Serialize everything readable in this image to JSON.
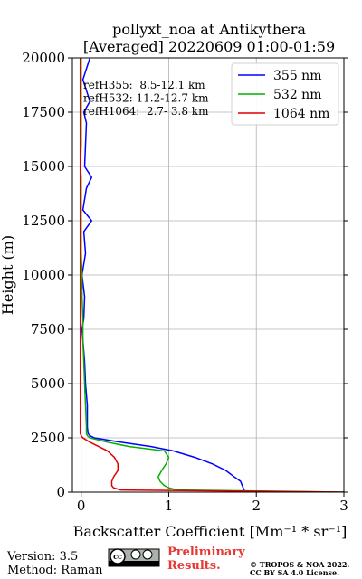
{
  "chart_data": {
    "type": "line",
    "title": [
      "pollyxt_noa at Antikythera",
      "[Averaged] 20220609 01:00-01:59"
    ],
    "xlabel": "Backscatter Coefficient [Mm⁻¹ * sr⁻¹]",
    "ylabel": "Height (m)",
    "xlim": [
      -0.1,
      3
    ],
    "xticks": [
      0,
      1,
      2,
      3
    ],
    "ylim": [
      0,
      20000
    ],
    "yticks": [
      0,
      2500,
      5000,
      7500,
      10000,
      12500,
      15000,
      17500,
      20000
    ],
    "grid": true,
    "legend": "upper right",
    "annotations": [
      "refH355:  8.5-12.1 km",
      "refH532: 11.2-12.7 km",
      "refH1064:  2.7- 3.8 km"
    ],
    "y": [
      0,
      100,
      200,
      300,
      500,
      700,
      1000,
      1300,
      1600,
      1900,
      2100,
      2300,
      2500,
      2600,
      2700,
      3000,
      4000,
      5000,
      6000,
      7000,
      7500,
      8000,
      9000,
      10000,
      11000,
      12000,
      12500,
      13000,
      14000,
      14500,
      15000,
      16000,
      17000,
      17500,
      18000,
      19000,
      20000
    ],
    "series": [
      {
        "name": "355 nm",
        "color": "#0000ff",
        "values": [
          1.85,
          1.86,
          1.85,
          1.84,
          1.82,
          1.75,
          1.65,
          1.5,
          1.3,
          1.05,
          0.8,
          0.45,
          0.15,
          0.1,
          0.08,
          0.07,
          0.07,
          0.05,
          0.04,
          0.02,
          0.01,
          0.03,
          0.04,
          0.01,
          0.05,
          0.03,
          0.12,
          0.02,
          0.06,
          0.12,
          0.04,
          0.05,
          0.06,
          0.03,
          0.1,
          0.02,
          0.1
        ]
      },
      {
        "name": "532 nm",
        "color": "#00b000",
        "values": [
          3,
          1.1,
          1,
          0.95,
          0.9,
          0.88,
          0.92,
          0.97,
          1,
          0.95,
          0.55,
          0.3,
          0.1,
          0.07,
          0.06,
          0.06,
          0.05,
          0.04,
          0.03,
          0.02,
          0.02,
          0.02,
          0.01,
          0.01,
          0,
          0,
          0,
          0,
          0,
          0,
          -0.01,
          0,
          0,
          0,
          0,
          0,
          0
        ]
      },
      {
        "name": "1064 nm",
        "color": "#e00000",
        "values": [
          3,
          0.45,
          0.37,
          0.35,
          0.35,
          0.37,
          0.42,
          0.42,
          0.38,
          0.3,
          0.2,
          0.1,
          0.02,
          0,
          -0.01,
          -0.01,
          -0.01,
          -0.01,
          -0.01,
          -0.01,
          -0.01,
          -0.01,
          -0.01,
          -0.01,
          -0.01,
          -0.01,
          -0.01,
          -0.01,
          -0.01,
          -0.01,
          -0.01,
          -0.01,
          -0.01,
          -0.01,
          -0.01,
          -0.01,
          -0.01
        ]
      }
    ]
  },
  "footer": {
    "version": "Version: 3.5",
    "method": "Method: Raman",
    "preliminary": [
      "Preliminary",
      "Results."
    ],
    "copyright": [
      "© TROPOS & NOA 2022.",
      "CC BY SA 4.0 License."
    ]
  }
}
